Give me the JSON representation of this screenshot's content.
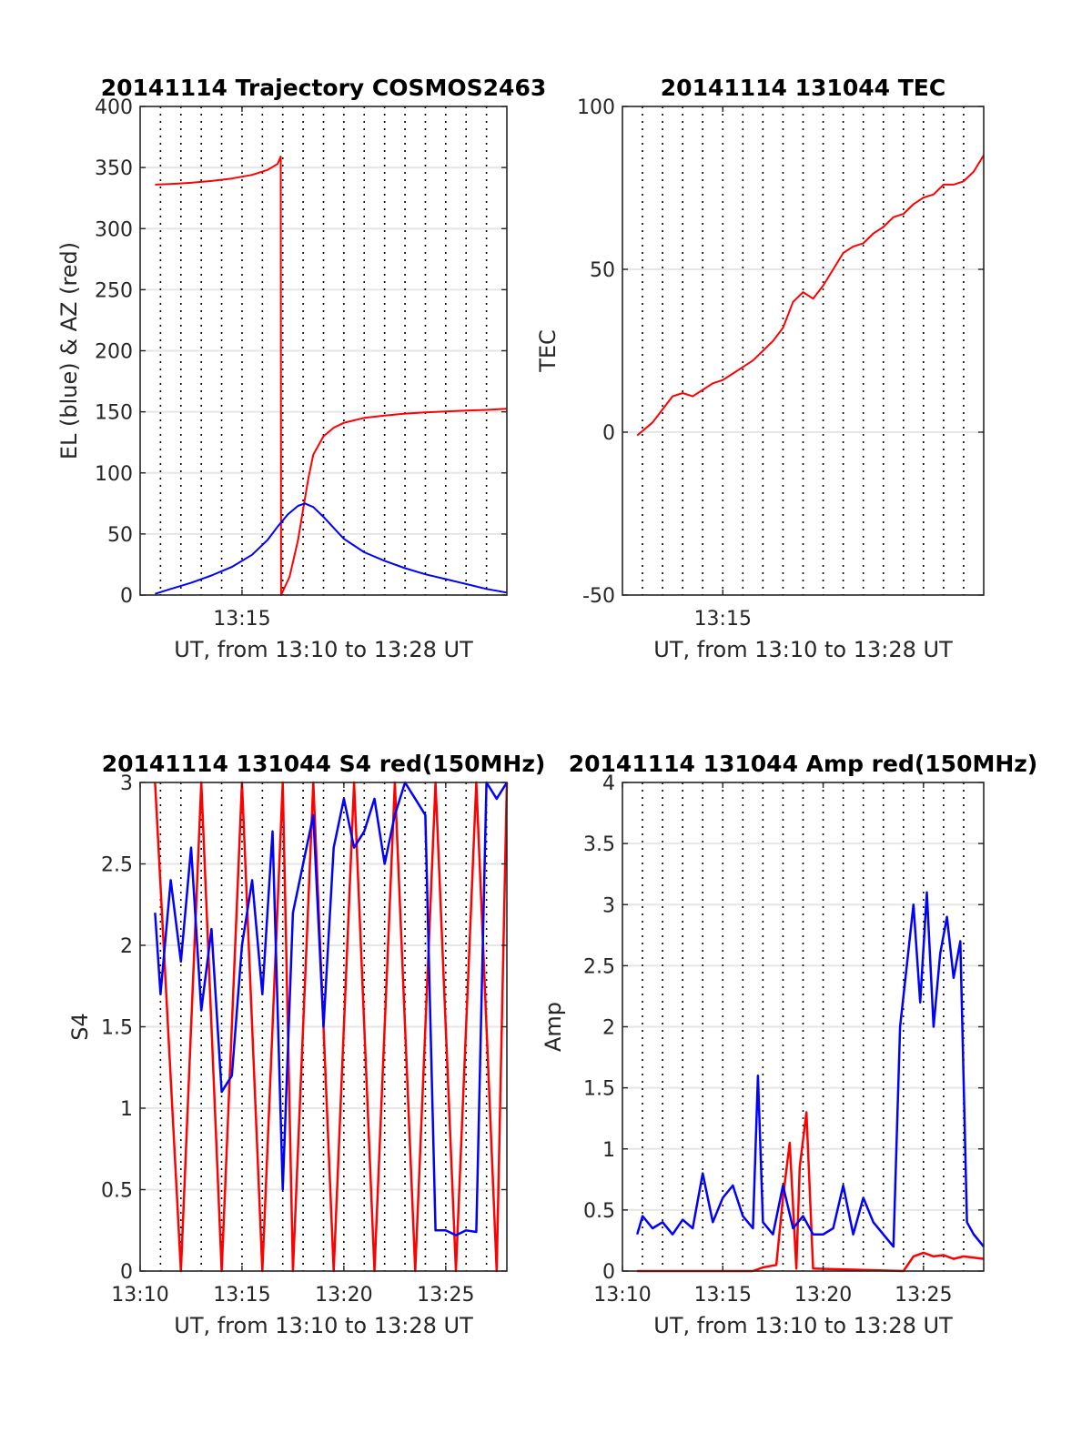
{
  "chart_data": [
    {
      "type": "line",
      "title": "20141114 Trajectory COSMOS2463",
      "xlabel": "UT, from 13:10 to 13:28 UT",
      "ylabel": "EL (blue) & AZ (red)",
      "xlim": [
        "13:10",
        "13:28"
      ],
      "ylim": [
        0,
        400
      ],
      "xticks": [
        "13:15"
      ],
      "yticks": [
        0,
        50,
        100,
        150,
        200,
        250,
        300,
        350,
        400
      ],
      "grid": "on",
      "series": [
        {
          "color": "#ff0000",
          "x": [
            "13:10:44",
            "13:11:30",
            "13:12:30",
            "13:13:30",
            "13:14:30",
            "13:15:30",
            "13:16:15",
            "13:16:45",
            "13:16:54",
            "13:16:55",
            "13:17:20",
            "13:17:45",
            "13:18:00",
            "13:18:15",
            "13:18:30",
            "13:19:00",
            "13:19:30",
            "13:20:00",
            "13:21:00",
            "13:22:00",
            "13:23:00",
            "13:24:00",
            "13:25:00",
            "13:26:00",
            "13:27:00",
            "13:28:00"
          ],
          "values": [
            336,
            336.5,
            337.5,
            339,
            341,
            344,
            348,
            353,
            359,
            0,
            15,
            45,
            70,
            95,
            115,
            130,
            137,
            141,
            145,
            147,
            148.5,
            149.5,
            150.3,
            151,
            151.6,
            152.5
          ]
        },
        {
          "color": "#0000ff",
          "x": [
            "13:10:44",
            "13:11:30",
            "13:12:30",
            "13:13:30",
            "13:14:30",
            "13:15:30",
            "13:16:15",
            "13:16:45",
            "13:17:15",
            "13:17:45",
            "13:18:05",
            "13:18:30",
            "13:19:00",
            "13:19:30",
            "13:20:00",
            "13:21:00",
            "13:22:00",
            "13:23:00",
            "13:24:00",
            "13:25:00",
            "13:26:00",
            "13:27:00",
            "13:28:00"
          ],
          "values": [
            1,
            5,
            10,
            16,
            23,
            33,
            45,
            56,
            66,
            73,
            75,
            72,
            64,
            55,
            46,
            35,
            28,
            22,
            17,
            13,
            9,
            5,
            2
          ]
        }
      ]
    },
    {
      "type": "line",
      "title": "20141114 131044 TEC",
      "xlabel": "UT, from 13:10 to 13:28 UT",
      "ylabel": "TEC",
      "xlim": [
        "13:10",
        "13:28"
      ],
      "ylim": [
        -50,
        100
      ],
      "xticks": [
        "13:15"
      ],
      "yticks": [
        -50,
        0,
        50,
        100
      ],
      "grid": "on",
      "series": [
        {
          "color": "#ff0000",
          "x": [
            "13:10:44",
            "13:11:30",
            "13:12:00",
            "13:12:30",
            "13:13:00",
            "13:13:30",
            "13:14:00",
            "13:14:30",
            "13:15:00",
            "13:15:30",
            "13:16:00",
            "13:16:30",
            "13:17:00",
            "13:17:30",
            "13:18:00",
            "13:18:30",
            "13:19:00",
            "13:19:30",
            "13:20:00",
            "13:20:30",
            "13:21:00",
            "13:21:30",
            "13:22:00",
            "13:22:30",
            "13:23:00",
            "13:23:30",
            "13:24:00",
            "13:24:30",
            "13:25:00",
            "13:25:30",
            "13:26:00",
            "13:26:30",
            "13:27:00",
            "13:27:30",
            "13:28:00"
          ],
          "values": [
            -1,
            3,
            7,
            11,
            12,
            11,
            13,
            15,
            16,
            18,
            20,
            22,
            25,
            28,
            32,
            40,
            43,
            41,
            45,
            50,
            55,
            57,
            58,
            61,
            63,
            66,
            67,
            70,
            72,
            73,
            76,
            76,
            77,
            80,
            85
          ]
        }
      ]
    },
    {
      "type": "line",
      "title": "20141114 131044 S4 red(150MHz)",
      "xlabel": "UT, from 13:10 to 13:28 UT",
      "ylabel": "S4",
      "xlim": [
        "13:10",
        "13:28"
      ],
      "ylim": [
        0,
        3
      ],
      "xticks": [
        "13:10",
        "13:15",
        "13:20",
        "13:25"
      ],
      "yticks": [
        0,
        0.5,
        1,
        1.5,
        2,
        2.5,
        3
      ],
      "grid": "on",
      "series": [
        {
          "color": "#ff0000",
          "x": [
            "13:10:44",
            "13:12:00",
            "13:13:00",
            "13:14:00",
            "13:15:00",
            "13:16:00",
            "13:17:00",
            "13:17:30",
            "13:18:30",
            "13:19:30",
            "13:20:30",
            "13:21:30",
            "13:22:30",
            "13:23:30",
            "13:24:30",
            "13:25:30",
            "13:26:30",
            "13:27:30",
            "13:28:00"
          ],
          "values": [
            3,
            0,
            3,
            0,
            3,
            0,
            3,
            0,
            3,
            0,
            3,
            0,
            3,
            0,
            3,
            0,
            3,
            0,
            3
          ]
        },
        {
          "color": "#0000ff",
          "x": [
            "13:10:44",
            "13:11:00",
            "13:11:30",
            "13:12:00",
            "13:12:30",
            "13:13:00",
            "13:13:30",
            "13:14:00",
            "13:14:30",
            "13:15:00",
            "13:15:30",
            "13:16:00",
            "13:16:30",
            "13:17:00",
            "13:17:30",
            "13:18:00",
            "13:18:30",
            "13:19:00",
            "13:19:30",
            "13:20:00",
            "13:20:30",
            "13:21:00",
            "13:21:30",
            "13:22:00",
            "13:22:30",
            "13:23:00",
            "13:23:30",
            "13:24:00",
            "13:24:30",
            "13:25:00",
            "13:25:30",
            "13:26:00",
            "13:26:30",
            "13:27:00",
            "13:27:30",
            "13:28:00"
          ],
          "values": [
            2.2,
            1.7,
            2.4,
            1.9,
            2.6,
            1.6,
            2.1,
            1.1,
            1.2,
            2.0,
            2.4,
            1.7,
            2.7,
            0.5,
            2.2,
            2.5,
            2.8,
            1.5,
            2.6,
            2.9,
            2.6,
            2.7,
            2.9,
            2.5,
            2.8,
            3,
            2.9,
            2.8,
            0.25,
            0.25,
            0.22,
            0.25,
            0.24,
            3,
            2.9,
            3
          ]
        }
      ]
    },
    {
      "type": "line",
      "title": "20141114 131044 Amp red(150MHz)",
      "xlabel": "UT, from 13:10 to 13:28 UT",
      "ylabel": "Amp",
      "xlim": [
        "13:10",
        "13:28"
      ],
      "ylim": [
        0,
        4
      ],
      "xticks": [
        "13:10",
        "13:15",
        "13:20",
        "13:25"
      ],
      "yticks": [
        0,
        0.5,
        1,
        1.5,
        2,
        2.5,
        3,
        3.5,
        4
      ],
      "grid": "on",
      "series": [
        {
          "color": "#ff0000",
          "x": [
            "13:10:44",
            "13:16:30",
            "13:17:00",
            "13:17:40",
            "13:18:00",
            "13:18:20",
            "13:18:40",
            "13:18:50",
            "13:19:10",
            "13:19:30",
            "13:24:00",
            "13:24:30",
            "13:25:00",
            "13:25:30",
            "13:26:00",
            "13:26:30",
            "13:27:00",
            "13:28:00"
          ],
          "values": [
            0,
            0,
            0.03,
            0.05,
            0.6,
            1.05,
            0.02,
            0.85,
            1.3,
            0.02,
            0,
            0.12,
            0.15,
            0.12,
            0.13,
            0.1,
            0.12,
            0.1
          ]
        },
        {
          "color": "#0000ff",
          "x": [
            "13:10:44",
            "13:11:00",
            "13:11:30",
            "13:12:00",
            "13:12:30",
            "13:13:00",
            "13:13:30",
            "13:14:00",
            "13:14:30",
            "13:15:00",
            "13:15:30",
            "13:16:00",
            "13:16:30",
            "13:16:45",
            "13:17:00",
            "13:17:30",
            "13:18:00",
            "13:18:30",
            "13:19:00",
            "13:19:30",
            "13:20:00",
            "13:20:30",
            "13:21:00",
            "13:21:30",
            "13:22:00",
            "13:22:30",
            "13:23:00",
            "13:23:30",
            "13:23:50",
            "13:24:10",
            "13:24:30",
            "13:24:50",
            "13:25:10",
            "13:25:30",
            "13:25:50",
            "13:26:10",
            "13:26:30",
            "13:26:50",
            "13:27:10",
            "13:27:30",
            "13:28:00"
          ],
          "values": [
            0.3,
            0.45,
            0.35,
            0.4,
            0.3,
            0.42,
            0.35,
            0.8,
            0.4,
            0.6,
            0.7,
            0.45,
            0.35,
            1.6,
            0.4,
            0.3,
            0.7,
            0.35,
            0.45,
            0.3,
            0.3,
            0.35,
            0.7,
            0.3,
            0.6,
            0.4,
            0.3,
            0.2,
            2.0,
            2.5,
            3.0,
            2.2,
            3.1,
            2.0,
            2.6,
            2.9,
            2.4,
            2.7,
            0.4,
            0.3,
            0.2
          ]
        }
      ]
    }
  ]
}
